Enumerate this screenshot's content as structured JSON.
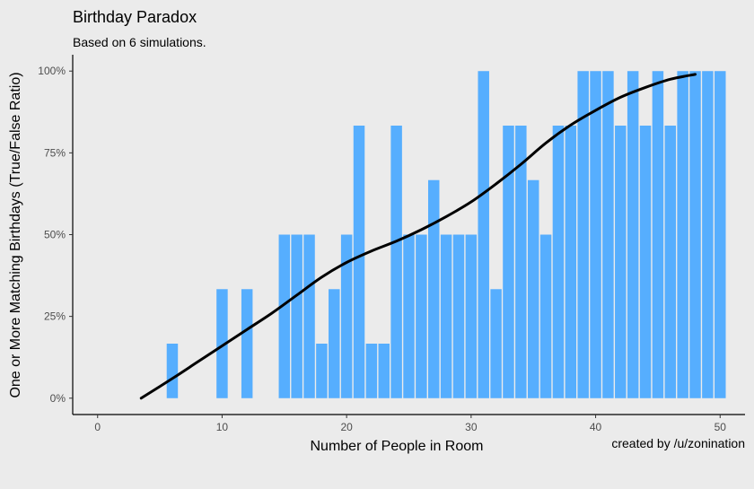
{
  "chart_data": {
    "type": "bar",
    "title": "Birthday Paradox",
    "subtitle": "Based on 6 simulations.",
    "xlabel": "Number of People in Room",
    "ylabel": "One or More Matching Birthdays (True/False Ratio)",
    "caption": "created by /u/zonination",
    "xlim": [
      -2,
      52
    ],
    "ylim": [
      -0.05,
      1.05
    ],
    "x_ticks": [
      0,
      10,
      20,
      30,
      40,
      50
    ],
    "x_tick_labels": [
      "0",
      "10",
      "20",
      "30",
      "40",
      "50"
    ],
    "y_ticks": [
      0,
      0.25,
      0.5,
      0.75,
      1
    ],
    "y_tick_labels": [
      "0%",
      "25%",
      "50%",
      "75%",
      "100%"
    ],
    "grid": false,
    "bar_color": "#56aefe",
    "bars": [
      {
        "x": 6,
        "y": 0.1667
      },
      {
        "x": 10,
        "y": 0.3333
      },
      {
        "x": 12,
        "y": 0.3333
      },
      {
        "x": 15,
        "y": 0.5
      },
      {
        "x": 16,
        "y": 0.5
      },
      {
        "x": 17,
        "y": 0.5
      },
      {
        "x": 18,
        "y": 0.1667
      },
      {
        "x": 19,
        "y": 0.3333
      },
      {
        "x": 20,
        "y": 0.5
      },
      {
        "x": 21,
        "y": 0.8333
      },
      {
        "x": 22,
        "y": 0.1667
      },
      {
        "x": 23,
        "y": 0.1667
      },
      {
        "x": 24,
        "y": 0.8333
      },
      {
        "x": 25,
        "y": 0.5
      },
      {
        "x": 26,
        "y": 0.5
      },
      {
        "x": 27,
        "y": 0.6667
      },
      {
        "x": 28,
        "y": 0.5
      },
      {
        "x": 29,
        "y": 0.5
      },
      {
        "x": 30,
        "y": 0.5
      },
      {
        "x": 31,
        "y": 1.0
      },
      {
        "x": 32,
        "y": 0.3333
      },
      {
        "x": 33,
        "y": 0.8333
      },
      {
        "x": 34,
        "y": 0.8333
      },
      {
        "x": 35,
        "y": 0.6667
      },
      {
        "x": 36,
        "y": 0.5
      },
      {
        "x": 37,
        "y": 0.8333
      },
      {
        "x": 38,
        "y": 0.8333
      },
      {
        "x": 39,
        "y": 1.0
      },
      {
        "x": 40,
        "y": 1.0
      },
      {
        "x": 41,
        "y": 1.0
      },
      {
        "x": 42,
        "y": 0.8333
      },
      {
        "x": 43,
        "y": 1.0
      },
      {
        "x": 44,
        "y": 0.8333
      },
      {
        "x": 45,
        "y": 1.0
      },
      {
        "x": 46,
        "y": 0.8333
      },
      {
        "x": 47,
        "y": 1.0
      },
      {
        "x": 48,
        "y": 1.0
      },
      {
        "x": 49,
        "y": 1.0
      },
      {
        "x": 50,
        "y": 1.0
      }
    ],
    "smooth_line": {
      "color": "#000000",
      "points": [
        {
          "x": 3.5,
          "y": 0.0
        },
        {
          "x": 6,
          "y": 0.06
        },
        {
          "x": 8,
          "y": 0.11
        },
        {
          "x": 10,
          "y": 0.16
        },
        {
          "x": 12,
          "y": 0.21
        },
        {
          "x": 14,
          "y": 0.26
        },
        {
          "x": 16,
          "y": 0.315
        },
        {
          "x": 18,
          "y": 0.37
        },
        {
          "x": 20,
          "y": 0.415
        },
        {
          "x": 22,
          "y": 0.45
        },
        {
          "x": 24,
          "y": 0.48
        },
        {
          "x": 26,
          "y": 0.515
        },
        {
          "x": 28,
          "y": 0.555
        },
        {
          "x": 30,
          "y": 0.6
        },
        {
          "x": 32,
          "y": 0.655
        },
        {
          "x": 34,
          "y": 0.715
        },
        {
          "x": 36,
          "y": 0.78
        },
        {
          "x": 38,
          "y": 0.835
        },
        {
          "x": 40,
          "y": 0.88
        },
        {
          "x": 42,
          "y": 0.92
        },
        {
          "x": 44,
          "y": 0.95
        },
        {
          "x": 46,
          "y": 0.975
        },
        {
          "x": 48,
          "y": 0.99
        }
      ]
    }
  }
}
